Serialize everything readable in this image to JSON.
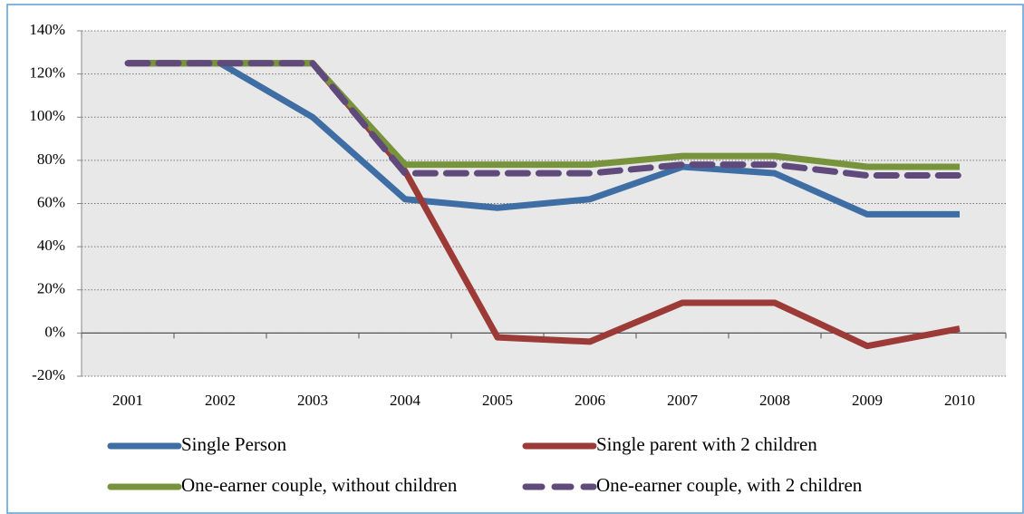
{
  "chart_data": {
    "type": "line",
    "categories": [
      "2001",
      "2002",
      "2003",
      "2004",
      "2005",
      "2006",
      "2007",
      "2008",
      "2009",
      "2010"
    ],
    "series": [
      {
        "name": "Single Person",
        "color": "#3f6ea5",
        "values": [
          125,
          125,
          100,
          62,
          58,
          62,
          77,
          74,
          55,
          55
        ]
      },
      {
        "name": "Single parent with 2 children",
        "color": "#9b3a36",
        "values": [
          125,
          125,
          125,
          75,
          -2,
          -4,
          14,
          14,
          -6,
          2
        ]
      },
      {
        "name": "One-earner couple, without children",
        "color": "#77933c",
        "values": [
          125,
          125,
          125,
          78,
          78,
          78,
          82,
          82,
          77,
          77
        ]
      },
      {
        "name": "One-earner couple, with 2 children",
        "color": "#604a7b",
        "dashed": true,
        "values": [
          125,
          125,
          125,
          74,
          74,
          74,
          78,
          78,
          73,
          73
        ]
      }
    ],
    "ylim": [
      -20,
      140
    ],
    "yticks": [
      {
        "value": -20,
        "label": "-20%"
      },
      {
        "value": 0,
        "label": "0%"
      },
      {
        "value": 20,
        "label": "20%"
      },
      {
        "value": 40,
        "label": "40%"
      },
      {
        "value": 60,
        "label": "60%"
      },
      {
        "value": 80,
        "label": "80%"
      },
      {
        "value": 100,
        "label": "100%"
      },
      {
        "value": 120,
        "label": "120%"
      },
      {
        "value": 140,
        "label": "140%"
      }
    ],
    "grid": true,
    "legend": "bottom"
  }
}
